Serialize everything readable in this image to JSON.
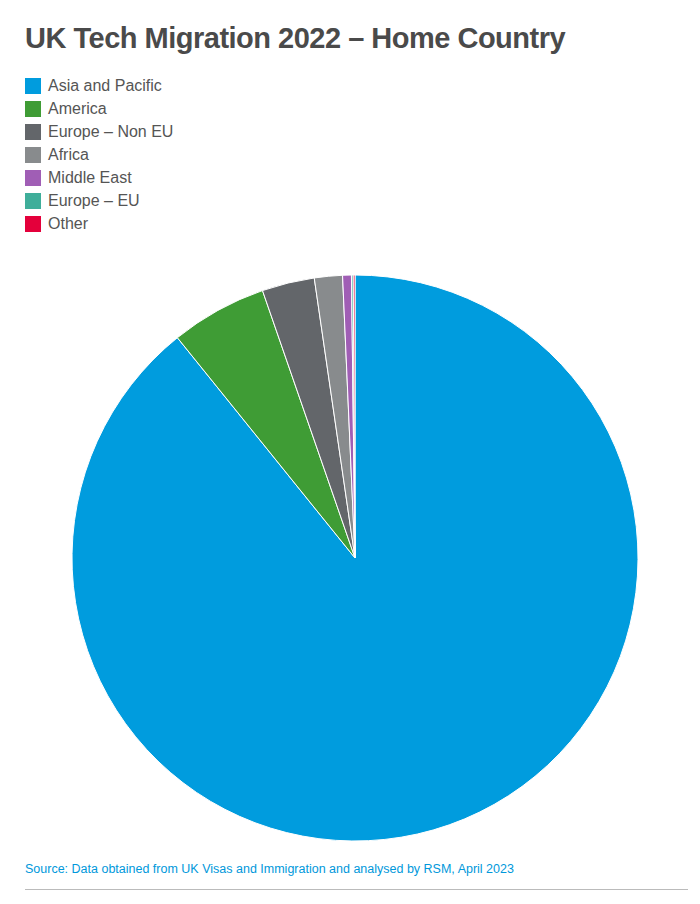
{
  "chart_data": {
    "type": "pie",
    "title": "UK Tech Migration 2022 – Home Country",
    "categories": [
      "Asia and Pacific",
      "America",
      "Europe – Non EU",
      "Africa",
      "Middle East",
      "Europe – EU",
      "Other"
    ],
    "values": [
      89.2,
      5.5,
      3.0,
      1.6,
      0.5,
      0.1,
      0.1
    ],
    "colors": [
      "#009cde",
      "#3f9c35",
      "#63666a",
      "#888b8d",
      "#a05eb5",
      "#3fae9a",
      "#e4003b"
    ],
    "legend": "top-left",
    "annotations": [
      "Source: Data obtained from UK Visas and Immigration and analysed by RSM, April 2023"
    ]
  }
}
